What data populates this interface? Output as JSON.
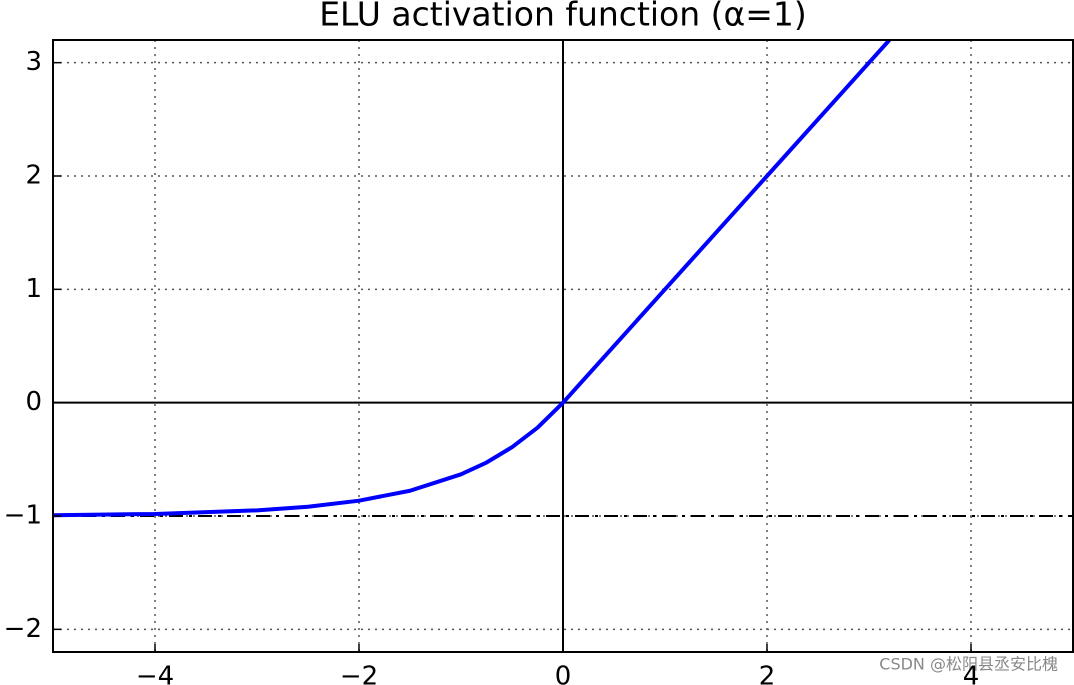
{
  "chart_data": {
    "type": "line",
    "title": "ELU activation function (α=1)",
    "x": [
      -5,
      -4,
      -3,
      -2.5,
      -2,
      -1.5,
      -1,
      -0.75,
      -0.5,
      -0.25,
      0,
      1,
      2,
      3,
      3.2
    ],
    "series": [
      {
        "color": "#0000ff",
        "values": [
          -0.993,
          -0.982,
          -0.95,
          -0.918,
          -0.865,
          -0.777,
          -0.632,
          -0.528,
          -0.393,
          -0.221,
          0,
          1,
          2,
          3,
          3.2
        ]
      }
    ],
    "xlim": [
      -5,
      5
    ],
    "ylim": [
      -2.2,
      3.2
    ],
    "xticks": [
      {
        "value": -4,
        "label": "−4"
      },
      {
        "value": -2,
        "label": "−2"
      },
      0,
      2,
      4
    ],
    "yticks": [
      {
        "value": -2,
        "label": "−2"
      },
      {
        "value": -1,
        "label": "−1"
      },
      0,
      1,
      2,
      3
    ],
    "grid": true,
    "zero_lines": true,
    "reference_line": {
      "value": -1,
      "style": "dashdot"
    },
    "watermark": "CSDN @松阳县丞安比槐"
  }
}
